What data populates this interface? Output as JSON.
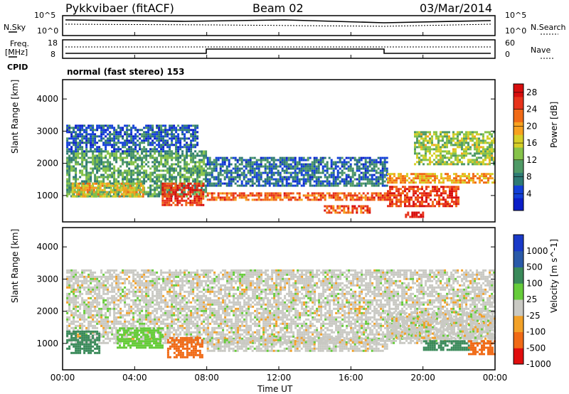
{
  "header": {
    "station": "Pykkvibaer (fitACF)",
    "beam": "Beam 02",
    "date": "03/Mar/2014"
  },
  "colors": {
    "power_scale": [
      "#0b1ec8",
      "#1340d8",
      "#2e7a74",
      "#4f9a66",
      "#86c34a",
      "#d6cf28",
      "#f7a11f",
      "#f06a16",
      "#e7331b",
      "#d80e0e"
    ],
    "velocity_scale": [
      "#e00d0d",
      "#f06a16",
      "#f2a128",
      "#c9c9c3",
      "#66cc3a",
      "#3a8a5a",
      "#2a5aa8",
      "#1a3ac8"
    ],
    "black": "#000000"
  },
  "top_panels": {
    "nsky_label": "N.Sky",
    "nsky_ticks": [
      "10^5",
      "10^0"
    ],
    "nsearch_label": "N.Search",
    "nsearch_ticks": [
      "10^5",
      "10^0"
    ],
    "freq_label": "Freq.",
    "freq_unit": "[MHz]",
    "freq_ticks": [
      "18",
      "8"
    ],
    "nave_label": "Nave",
    "nave_ticks": [
      "60",
      "0"
    ],
    "cpid_label": "CPID",
    "cpid_text": "normal (fast stereo) 153"
  },
  "time_axis": {
    "label": "Time UT",
    "ticks": [
      "00:00",
      "04:00",
      "08:00",
      "12:00",
      "16:00",
      "20:00",
      "00:00"
    ]
  },
  "range_axis": {
    "label": "Slant Range [km]",
    "ticks": [
      "1000",
      "2000",
      "3000",
      "4000"
    ]
  },
  "chart_data": [
    {
      "type": "heatmap",
      "title": "",
      "xlabel": "",
      "ylabel": "Slant Range [km]",
      "x_range_hours": [
        0,
        24
      ],
      "ylim": [
        180,
        4600
      ],
      "colorbar_label": "Power [dB]",
      "colorbar_ticks": [
        "4",
        "8",
        "12",
        "16",
        "20",
        "24",
        "28"
      ],
      "colorbar_range": [
        0,
        30
      ],
      "regions": [
        {
          "t": [
            0.2,
            8.0
          ],
          "r": [
            1000,
            2400
          ],
          "level": 10
        },
        {
          "t": [
            0.2,
            7.5
          ],
          "r": [
            2400,
            3200
          ],
          "level": 5
        },
        {
          "t": [
            0.5,
            4.5
          ],
          "r": [
            1000,
            1400
          ],
          "level": 18
        },
        {
          "t": [
            5.5,
            7.8
          ],
          "r": [
            700,
            1400
          ],
          "level": 27
        },
        {
          "t": [
            8.0,
            18.0
          ],
          "r": [
            850,
            1100
          ],
          "level": 24
        },
        {
          "t": [
            8.0,
            18.0
          ],
          "r": [
            1300,
            2200
          ],
          "level": 6
        },
        {
          "t": [
            14.5,
            17.0
          ],
          "r": [
            450,
            700
          ],
          "level": 25
        },
        {
          "t": [
            18.0,
            24.0
          ],
          "r": [
            1400,
            1700
          ],
          "level": 20
        },
        {
          "t": [
            18.0,
            22.0
          ],
          "r": [
            700,
            1300
          ],
          "level": 27
        },
        {
          "t": [
            19.0,
            20.0
          ],
          "r": [
            350,
            500
          ],
          "level": 29
        },
        {
          "t": [
            19.5,
            24.0
          ],
          "r": [
            2000,
            3000
          ],
          "level": 14
        }
      ]
    },
    {
      "type": "heatmap",
      "title": "",
      "xlabel": "Time UT",
      "ylabel": "Slant Range [km]",
      "x_range_hours": [
        0,
        24
      ],
      "ylim": [
        180,
        4600
      ],
      "colorbar_label": "Velocity [m s^-1]",
      "colorbar_ticks": [
        "1000",
        "500",
        "100",
        "25",
        "-25",
        "-100",
        "-500",
        "-1000"
      ],
      "regions": [
        {
          "t": [
            0.2,
            24.0
          ],
          "r": [
            1000,
            3300
          ],
          "velocity": 0
        },
        {
          "t": [
            0.2,
            2.0
          ],
          "r": [
            700,
            1400
          ],
          "velocity": 200
        },
        {
          "t": [
            3.0,
            5.5
          ],
          "r": [
            900,
            1500
          ],
          "velocity": 60
        },
        {
          "t": [
            5.8,
            7.8
          ],
          "r": [
            600,
            1200
          ],
          "velocity": -300
        },
        {
          "t": [
            8.0,
            18.0
          ],
          "r": [
            800,
            1200
          ],
          "velocity": 0
        },
        {
          "t": [
            18.0,
            24.0
          ],
          "r": [
            1200,
            2000
          ],
          "velocity": 0
        },
        {
          "t": [
            20.0,
            22.5
          ],
          "r": [
            800,
            1100
          ],
          "velocity": 300
        },
        {
          "t": [
            22.5,
            24.0
          ],
          "r": [
            700,
            1100
          ],
          "velocity": -300
        }
      ]
    }
  ]
}
